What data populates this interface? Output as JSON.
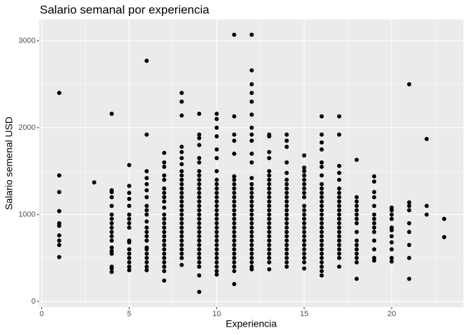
{
  "chart_data": {
    "type": "scatter",
    "title": "Salario semanal por experiencia",
    "x_label": "Experiencia",
    "y_label": "Salario semenal USD",
    "xlim": [
      -0.15,
      24.1
    ],
    "ylim": [
      -65,
      3245
    ],
    "xticks": [
      0,
      5,
      10,
      15,
      20
    ],
    "yticks": [
      0,
      1000,
      2000,
      3000
    ],
    "x_minor_grid": [
      2.5,
      7.5,
      12.5,
      17.5,
      22.5
    ],
    "y_minor_grid": [
      500,
      1500,
      2500
    ],
    "grid": true,
    "color": "#000000",
    "panel_color": "#ebebeb",
    "x": [
      1,
      1,
      1,
      1,
      1,
      1,
      1,
      1,
      1,
      1,
      3,
      4,
      4,
      4,
      4,
      4,
      4,
      4,
      4,
      4,
      4,
      4,
      4,
      4,
      4,
      4,
      4,
      4,
      4,
      5,
      5,
      5,
      5,
      5,
      5,
      5,
      5,
      5,
      5,
      5,
      5,
      5,
      5,
      5,
      5,
      5,
      6,
      6,
      6,
      6,
      6,
      6,
      6,
      6,
      6,
      6,
      6,
      6,
      6,
      6,
      6,
      6,
      6,
      6,
      6,
      6,
      6,
      6,
      7,
      7,
      7,
      7,
      7,
      7,
      7,
      7,
      7,
      7,
      7,
      7,
      7,
      7,
      7,
      7,
      7,
      7,
      7,
      7,
      7,
      7,
      7,
      7,
      7,
      8,
      8,
      8,
      8,
      8,
      8,
      8,
      8,
      8,
      8,
      8,
      8,
      8,
      8,
      8,
      8,
      8,
      8,
      8,
      8,
      8,
      8,
      8,
      8,
      8,
      8,
      8,
      8,
      8,
      9,
      9,
      9,
      9,
      9,
      9,
      9,
      9,
      9,
      9,
      9,
      9,
      9,
      9,
      9,
      9,
      9,
      9,
      9,
      9,
      9,
      9,
      9,
      9,
      9,
      9,
      9,
      9,
      9,
      9,
      9,
      10,
      10,
      10,
      10,
      10,
      10,
      10,
      10,
      10,
      10,
      10,
      10,
      10,
      10,
      10,
      10,
      10,
      10,
      10,
      10,
      10,
      10,
      10,
      10,
      10,
      10,
      10,
      10,
      10,
      10,
      11,
      11,
      11,
      11,
      11,
      11,
      11,
      11,
      11,
      11,
      11,
      11,
      11,
      11,
      11,
      11,
      11,
      11,
      11,
      11,
      11,
      11,
      11,
      11,
      11,
      11,
      11,
      11,
      11,
      12,
      12,
      12,
      12,
      12,
      12,
      12,
      12,
      12,
      12,
      12,
      12,
      12,
      12,
      12,
      12,
      12,
      12,
      12,
      12,
      12,
      12,
      12,
      12,
      12,
      12,
      12,
      12,
      12,
      12,
      12,
      12,
      12,
      13,
      13,
      13,
      13,
      13,
      13,
      13,
      13,
      13,
      13,
      13,
      13,
      13,
      13,
      13,
      13,
      13,
      13,
      13,
      13,
      13,
      13,
      13,
      13,
      13,
      13,
      13,
      14,
      14,
      14,
      14,
      14,
      14,
      14,
      14,
      14,
      14,
      14,
      14,
      14,
      14,
      14,
      14,
      14,
      14,
      14,
      14,
      14,
      14,
      14,
      14,
      14,
      14,
      15,
      15,
      15,
      15,
      15,
      15,
      15,
      15,
      15,
      15,
      15,
      15,
      15,
      15,
      15,
      15,
      15,
      15,
      15,
      15,
      15,
      15,
      15,
      15,
      16,
      16,
      16,
      16,
      16,
      16,
      16,
      16,
      16,
      16,
      16,
      16,
      16,
      16,
      16,
      16,
      16,
      16,
      16,
      16,
      16,
      16,
      16,
      16,
      16,
      16,
      16,
      16,
      16,
      17,
      17,
      17,
      17,
      17,
      17,
      17,
      17,
      17,
      17,
      17,
      17,
      17,
      17,
      17,
      17,
      17,
      17,
      17,
      17,
      17,
      17,
      17,
      18,
      18,
      18,
      18,
      18,
      18,
      18,
      18,
      18,
      18,
      18,
      18,
      18,
      18,
      18,
      18,
      19,
      19,
      19,
      19,
      19,
      19,
      19,
      19,
      19,
      19,
      19,
      19,
      19,
      19,
      20,
      20,
      20,
      20,
      20,
      20,
      20,
      20,
      20,
      20,
      20,
      21,
      21,
      21,
      21,
      21,
      21,
      21,
      21,
      21,
      22,
      22,
      22,
      23,
      23
    ],
    "values": [
      2400,
      1450,
      1260,
      1040,
      900,
      870,
      760,
      700,
      650,
      510,
      1370,
      2160,
      1280,
      1260,
      1200,
      1100,
      1000,
      950,
      900,
      850,
      800,
      750,
      700,
      620,
      580,
      550,
      400,
      380,
      340,
      1570,
      1330,
      1250,
      1180,
      1100,
      1000,
      950,
      900,
      850,
      700,
      680,
      600,
      550,
      500,
      450,
      400,
      360,
      2770,
      1920,
      1500,
      1420,
      1350,
      1280,
      1200,
      1100,
      1050,
      1000,
      920,
      850,
      800,
      750,
      700,
      620,
      600,
      550,
      500,
      450,
      400,
      360,
      1710,
      1600,
      1550,
      1450,
      1400,
      1300,
      1250,
      1200,
      1150,
      1080,
      1000,
      950,
      900,
      850,
      800,
      750,
      700,
      650,
      600,
      550,
      500,
      450,
      400,
      350,
      240,
      2400,
      2300,
      2140,
      1780,
      1720,
      1650,
      1580,
      1500,
      1450,
      1400,
      1350,
      1300,
      1250,
      1200,
      1150,
      1100,
      1050,
      1000,
      950,
      900,
      850,
      800,
      750,
      700,
      650,
      600,
      550,
      500,
      420,
      2160,
      1920,
      1880,
      1800,
      1650,
      1600,
      1500,
      1450,
      1400,
      1350,
      1300,
      1250,
      1200,
      1150,
      1100,
      1050,
      1000,
      950,
      900,
      850,
      800,
      750,
      700,
      650,
      600,
      550,
      500,
      450,
      400,
      300,
      110,
      2160,
      2100,
      2000,
      1900,
      1750,
      1650,
      1500,
      1400,
      1350,
      1300,
      1250,
      1200,
      1150,
      1100,
      1050,
      1000,
      950,
      900,
      850,
      800,
      750,
      700,
      650,
      600,
      550,
      500,
      450,
      400,
      350,
      310,
      3070,
      2130,
      1920,
      1850,
      1700,
      1440,
      1400,
      1350,
      1300,
      1250,
      1200,
      1150,
      1100,
      1050,
      1000,
      950,
      900,
      850,
      800,
      750,
      700,
      650,
      600,
      550,
      500,
      450,
      400,
      350,
      200,
      3070,
      2660,
      2500,
      2400,
      2300,
      2150,
      2000,
      1920,
      1850,
      1700,
      1600,
      1420,
      1350,
      1300,
      1250,
      1200,
      1150,
      1100,
      1050,
      1000,
      950,
      900,
      850,
      800,
      750,
      700,
      650,
      600,
      550,
      500,
      450,
      400,
      370,
      1920,
      1900,
      1720,
      1650,
      1500,
      1450,
      1400,
      1350,
      1300,
      1250,
      1200,
      1150,
      1100,
      1050,
      1000,
      950,
      900,
      850,
      800,
      750,
      700,
      650,
      600,
      550,
      500,
      450,
      370,
      1920,
      1850,
      1780,
      1600,
      1480,
      1400,
      1350,
      1300,
      1250,
      1200,
      1150,
      1100,
      1050,
      1000,
      950,
      900,
      850,
      800,
      750,
      700,
      650,
      600,
      550,
      500,
      450,
      400,
      1680,
      1540,
      1500,
      1450,
      1400,
      1350,
      1300,
      1250,
      1200,
      1100,
      1050,
      1000,
      950,
      900,
      850,
      800,
      750,
      700,
      650,
      600,
      550,
      500,
      450,
      380,
      2130,
      1920,
      1830,
      1750,
      1600,
      1550,
      1450,
      1350,
      1300,
      1250,
      1200,
      1150,
      1100,
      1050,
      1000,
      950,
      900,
      850,
      800,
      750,
      700,
      650,
      600,
      550,
      500,
      450,
      400,
      350,
      300,
      2130,
      1920,
      1560,
      1480,
      1400,
      1300,
      1250,
      1200,
      1150,
      1100,
      1050,
      1000,
      950,
      900,
      850,
      800,
      750,
      700,
      650,
      600,
      550,
      500,
      400,
      1630,
      1200,
      1150,
      1100,
      1050,
      1000,
      950,
      900,
      800,
      700,
      650,
      600,
      550,
      500,
      450,
      260,
      1440,
      1380,
      1260,
      1200,
      1100,
      1000,
      950,
      900,
      850,
      800,
      700,
      600,
      500,
      470,
      1080,
      1050,
      1000,
      950,
      850,
      820,
      750,
      680,
      600,
      500,
      460,
      2500,
      1140,
      1100,
      1050,
      900,
      800,
      650,
      500,
      260,
      1870,
      1100,
      1000,
      950,
      740
    ]
  }
}
